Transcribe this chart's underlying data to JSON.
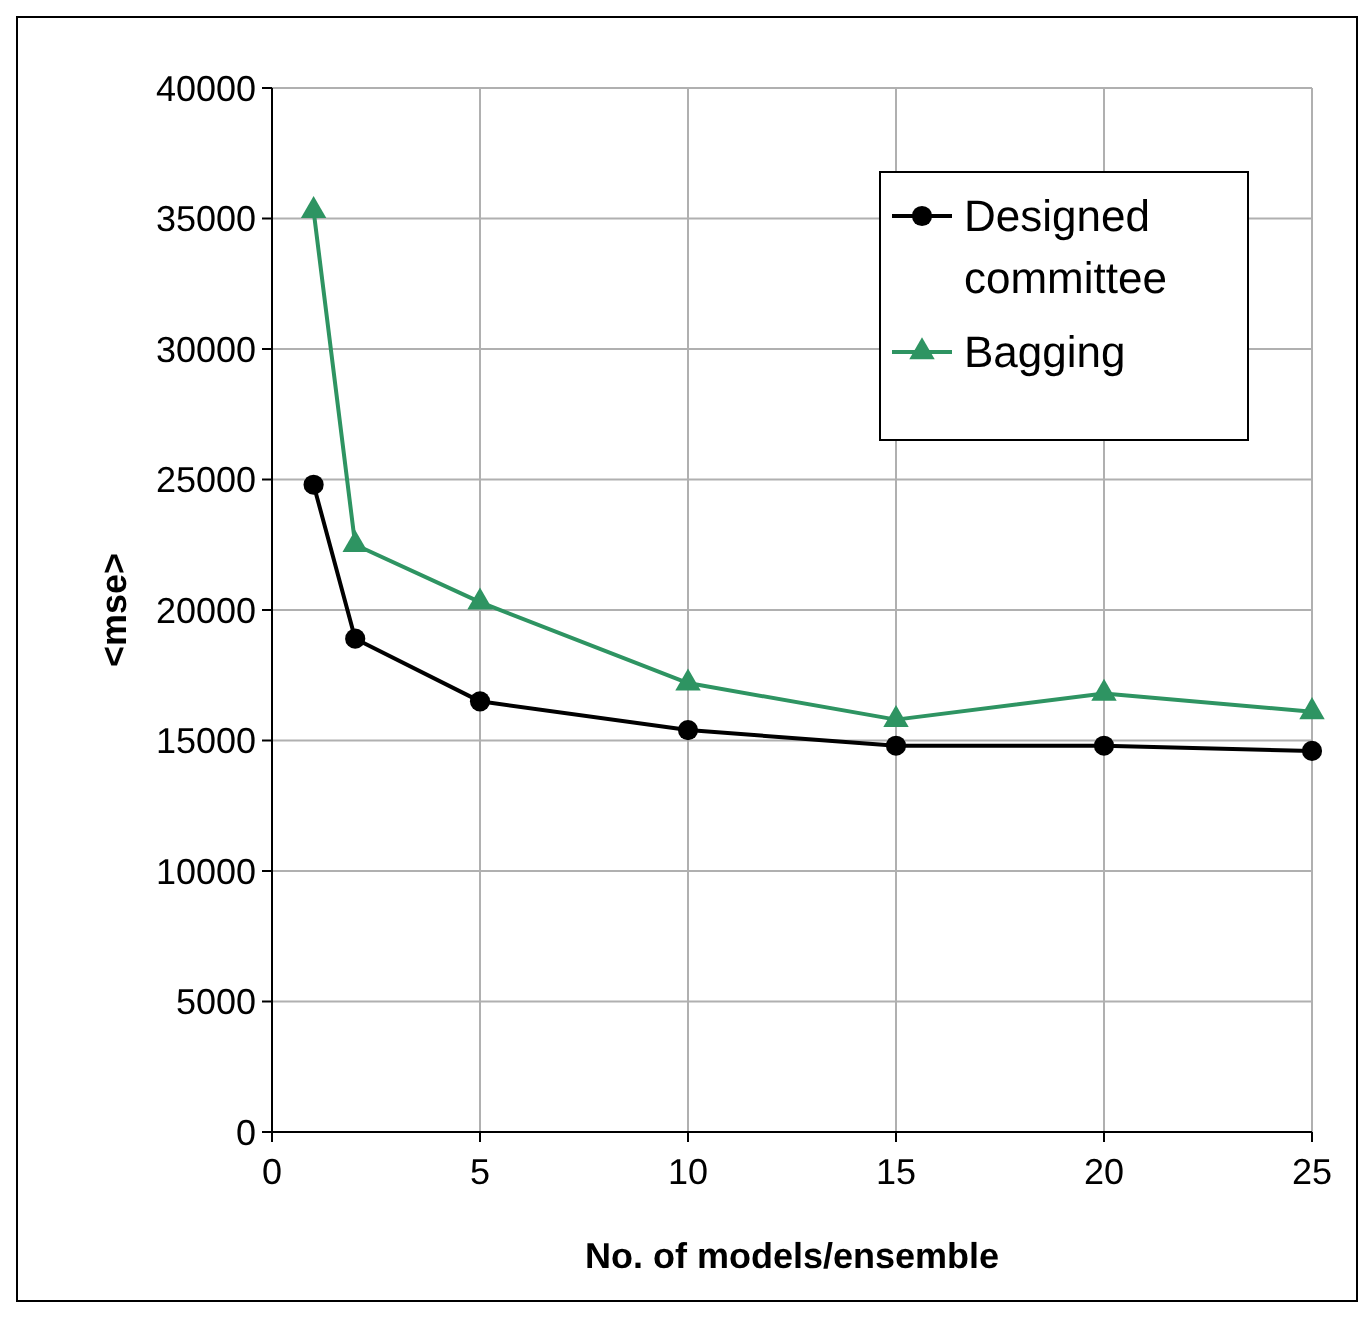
{
  "chart_data": {
    "type": "line",
    "xlabel": "No. of models/ensemble",
    "ylabel": "<mse>",
    "xlim": [
      0,
      25
    ],
    "xticks": [
      0,
      5,
      10,
      15,
      20,
      25
    ],
    "ylim": [
      0,
      40000
    ],
    "yticks": [
      0,
      5000,
      10000,
      15000,
      20000,
      25000,
      30000,
      35000,
      40000
    ],
    "grid": true,
    "legend": "top right",
    "line_style": "solid",
    "series": [
      {
        "name": "Designed committee",
        "color": "#000000",
        "marker": "circle",
        "x": [
          1,
          2,
          5,
          10,
          15,
          20,
          25
        ],
        "values": [
          24800,
          18900,
          16500,
          15400,
          14800,
          14800,
          14600
        ]
      },
      {
        "name": "Bagging",
        "color": "#2e9462",
        "marker": "triangle",
        "x": [
          1,
          2,
          5,
          10,
          15,
          20,
          25
        ],
        "values": [
          35300,
          22500,
          20300,
          17200,
          15800,
          16800,
          16100
        ]
      }
    ]
  }
}
